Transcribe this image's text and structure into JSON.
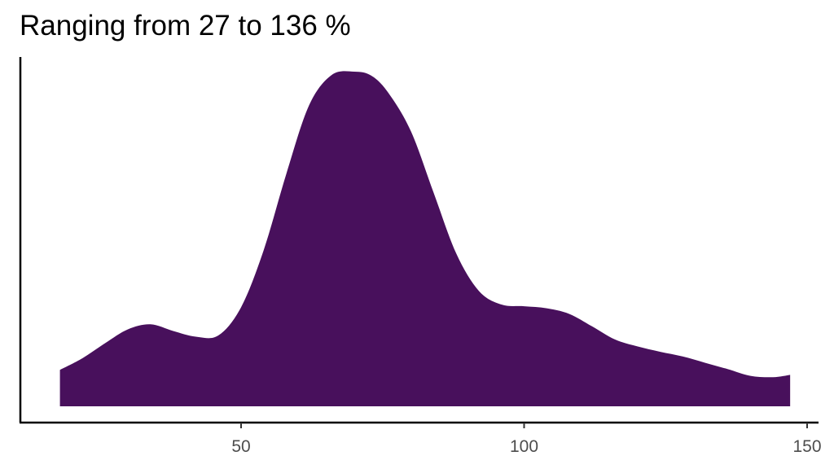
{
  "chart_data": {
    "type": "area",
    "title": "Ranging from 27 to 136 %",
    "xlabel": "",
    "ylabel": "",
    "xlim": [
      10,
      150
    ],
    "ylim": [
      0,
      1
    ],
    "x_ticks": [
      50,
      100,
      150
    ],
    "x_tick_labels": [
      "50",
      "100",
      "150"
    ],
    "y_ticks_shown": false,
    "grid": false,
    "legend": "none",
    "fill_color": "#48105C",
    "series": [
      {
        "x": [
          18,
          22,
          26,
          30,
          34,
          38,
          42,
          46,
          50,
          54,
          58,
          62,
          66,
          70,
          73,
          76,
          80,
          84,
          88,
          92,
          96,
          100,
          104,
          108,
          112,
          116,
          120,
          124,
          128,
          132,
          136,
          140,
          144,
          147
        ],
        "y": [
          0.109,
          0.144,
          0.189,
          0.23,
          0.245,
          0.225,
          0.208,
          0.212,
          0.296,
          0.467,
          0.695,
          0.899,
          0.99,
          1.0,
          0.988,
          0.937,
          0.822,
          0.639,
          0.457,
          0.345,
          0.304,
          0.299,
          0.293,
          0.276,
          0.239,
          0.2,
          0.179,
          0.163,
          0.149,
          0.13,
          0.111,
          0.091,
          0.087,
          0.094
        ]
      }
    ]
  }
}
